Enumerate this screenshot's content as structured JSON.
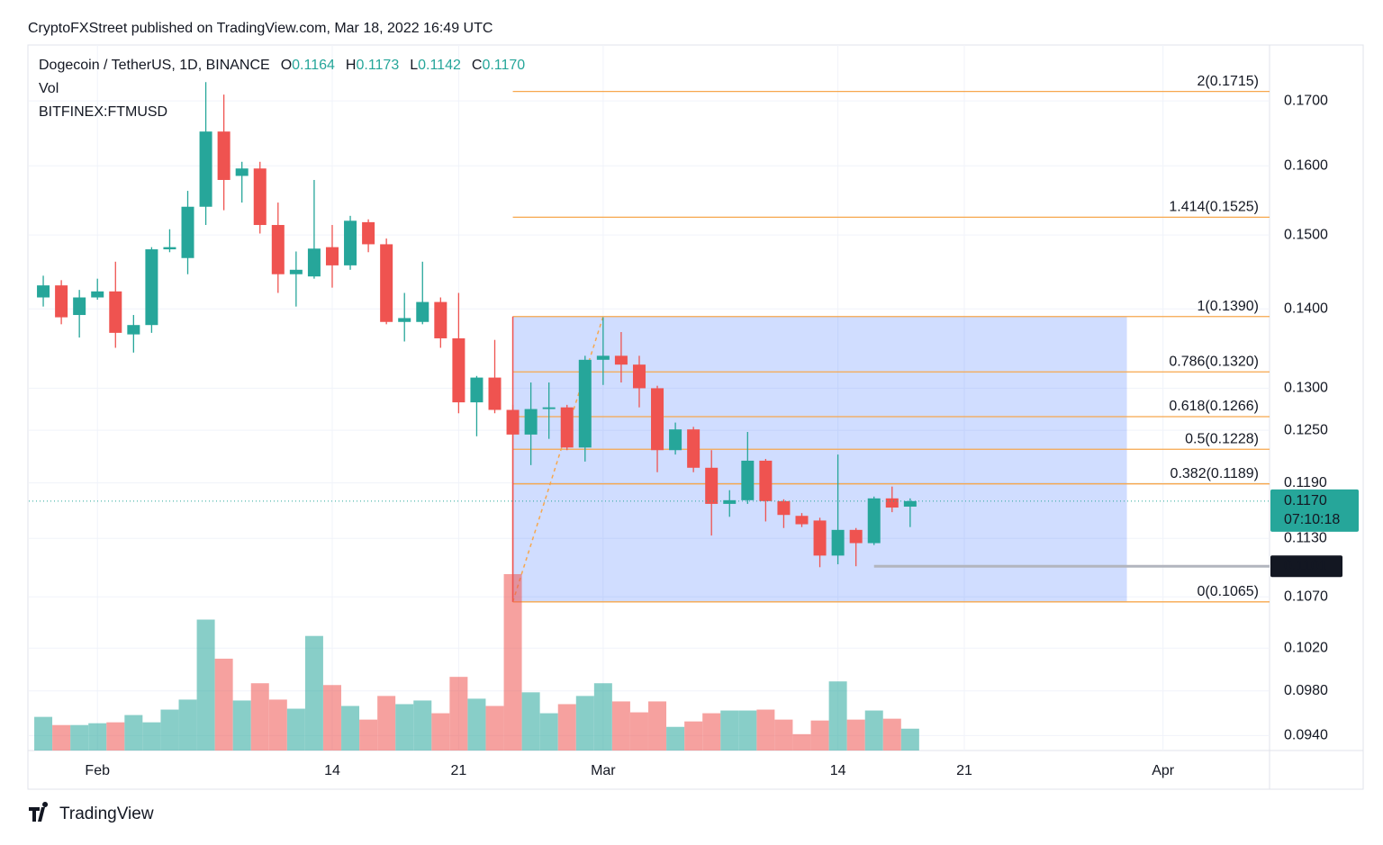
{
  "header": "CryptoFXStreet published on TradingView.com, Mar 18, 2022 16:49 UTC",
  "footer": "TradingView",
  "chart_data": {
    "type": "candlestick",
    "symbol": "Dogecoin / TetherUS, 1D, BINANCE",
    "legend_values": [
      {
        "key": "O",
        "value": "0.1164"
      },
      {
        "key": "H",
        "value": "0.1173"
      },
      {
        "key": "L",
        "value": "0.1142"
      },
      {
        "key": "C",
        "value": "0.1170"
      }
    ],
    "indicators": [
      "Vol",
      "BITFINEX:FTMUSD"
    ],
    "x": [
      0,
      1,
      2,
      3,
      4,
      5,
      6,
      7,
      8,
      9,
      10,
      11,
      12,
      13,
      14,
      15,
      16,
      17,
      18,
      19,
      20,
      21,
      22,
      23,
      24,
      25,
      26,
      27,
      28,
      29,
      30,
      31,
      32,
      33,
      34,
      35,
      36,
      37,
      38,
      39,
      40,
      41,
      42,
      43,
      44,
      45,
      46,
      47,
      48
    ],
    "open": [
      0.1415,
      0.1431,
      0.1392,
      0.1415,
      0.1423,
      0.1367,
      0.1379,
      0.148,
      0.1468,
      0.154,
      0.1652,
      0.1585,
      0.1596,
      0.1514,
      0.1446,
      0.1443,
      0.1483,
      0.1458,
      0.1518,
      0.1487,
      0.1383,
      0.1383,
      0.1409,
      0.1362,
      0.1283,
      0.1313,
      0.1274,
      0.1245,
      0.1275,
      0.1277,
      0.123,
      0.1335,
      0.134,
      0.1329,
      0.13,
      0.1227,
      0.1251,
      0.1207,
      0.1167,
      0.1171,
      0.1215,
      0.117,
      0.1154,
      0.1149,
      0.1112,
      0.1139,
      0.1125,
      0.1173,
      0.1164
    ],
    "high": [
      0.1444,
      0.1438,
      0.1425,
      0.144,
      0.1463,
      0.1392,
      0.1483,
      0.1508,
      0.1563,
      0.173,
      0.171,
      0.1606,
      0.1606,
      0.1546,
      0.1477,
      0.1579,
      0.1514,
      0.1527,
      0.1522,
      0.1495,
      0.1421,
      0.1463,
      0.1415,
      0.1421,
      0.1315,
      0.136,
      0.128,
      0.1307,
      0.1307,
      0.128,
      0.134,
      0.1389,
      0.137,
      0.134,
      0.1303,
      0.1259,
      0.1254,
      0.1227,
      0.1182,
      0.1248,
      0.1217,
      0.1172,
      0.1157,
      0.1152,
      0.1222,
      0.1141,
      0.1175,
      0.1186,
      0.1173
    ],
    "low": [
      0.1403,
      0.138,
      0.1363,
      0.1412,
      0.135,
      0.1344,
      0.1369,
      0.1476,
      0.1446,
      0.1514,
      0.1535,
      0.1546,
      0.1502,
      0.1421,
      0.1403,
      0.144,
      0.1428,
      0.1452,
      0.1476,
      0.138,
      0.1358,
      0.138,
      0.135,
      0.127,
      0.1243,
      0.127,
      0.1065,
      0.121,
      0.124,
      0.1227,
      0.1214,
      0.1304,
      0.1307,
      0.1277,
      0.1202,
      0.1222,
      0.1202,
      0.1133,
      0.1153,
      0.1167,
      0.1148,
      0.1141,
      0.1142,
      0.11,
      0.1103,
      0.1101,
      0.1123,
      0.1158,
      0.1142
    ],
    "close": [
      0.1431,
      0.1389,
      0.1415,
      0.1423,
      0.1369,
      0.1379,
      0.148,
      0.1483,
      0.154,
      0.1652,
      0.1579,
      0.1596,
      0.1514,
      0.1446,
      0.1452,
      0.1481,
      0.1458,
      0.152,
      0.1487,
      0.1383,
      0.1388,
      0.1409,
      0.1362,
      0.1283,
      0.1313,
      0.1274,
      0.1245,
      0.1275,
      0.1277,
      0.123,
      0.1335,
      0.134,
      0.1329,
      0.13,
      0.1227,
      0.1251,
      0.1207,
      0.1167,
      0.1171,
      0.1215,
      0.117,
      0.1155,
      0.1145,
      0.1112,
      0.1139,
      0.1125,
      0.1173,
      0.1163,
      0.117
    ],
    "volume": [
      37,
      28,
      28,
      30,
      31,
      39,
      31,
      45,
      56,
      144,
      101,
      55,
      74,
      56,
      46,
      126,
      72,
      49,
      34,
      60,
      51,
      55,
      41,
      81,
      57,
      49,
      194,
      64,
      41,
      51,
      60,
      74,
      54,
      42,
      54,
      26,
      32,
      41,
      44,
      44,
      45,
      34,
      18,
      33,
      76,
      34,
      44,
      35,
      24
    ],
    "up_color": "#26a69a",
    "down_color": "#ef5350",
    "log_scale": true,
    "grid": true,
    "xlim": [
      -0.8,
      67.9
    ],
    "xticks": [
      {
        "value": 3,
        "label": "Feb"
      },
      {
        "value": 16,
        "label": "14"
      },
      {
        "value": 23,
        "label": "21"
      },
      {
        "value": 31,
        "label": "Mar"
      },
      {
        "value": 44,
        "label": "14"
      },
      {
        "value": 51,
        "label": "21"
      },
      {
        "value": 62,
        "label": "Apr"
      }
    ],
    "ylim": [
      0.0927,
      0.1791
    ],
    "yticks": [
      {
        "value": 0.17,
        "label": "0.1700"
      },
      {
        "value": 0.16,
        "label": "0.1600"
      },
      {
        "value": 0.15,
        "label": "0.1500"
      },
      {
        "value": 0.14,
        "label": "0.1400"
      },
      {
        "value": 0.13,
        "label": "0.1300"
      },
      {
        "value": 0.125,
        "label": "0.1250"
      },
      {
        "value": 0.119,
        "label": "0.1190"
      },
      {
        "value": 0.113,
        "label": "0.1130"
      },
      {
        "value": 0.107,
        "label": "0.1070"
      },
      {
        "value": 0.102,
        "label": "0.1020"
      },
      {
        "value": 0.098,
        "label": "0.0980"
      },
      {
        "value": 0.094,
        "label": "0.0940"
      }
    ],
    "last_price": {
      "value": 0.117,
      "label": "0.1170",
      "countdown": "07:10:18"
    },
    "low_line": {
      "value": 0.1101,
      "label": "0.1101",
      "from": 46
    },
    "fib": {
      "from": 26,
      "to": 60,
      "color": "#f7a74d",
      "levels": [
        {
          "value": 0.1715,
          "label": "2(0.1715)"
        },
        {
          "value": 0.1525,
          "label": "1.414(0.1525)"
        },
        {
          "value": 0.139,
          "label": "1(0.1390)"
        },
        {
          "value": 0.132,
          "label": "0.786(0.1320)"
        },
        {
          "value": 0.1266,
          "label": "0.618(0.1266)"
        },
        {
          "value": 0.1228,
          "label": "0.5(0.1228)"
        },
        {
          "value": 0.1189,
          "label": "0.382(0.1189)"
        },
        {
          "value": 0.1065,
          "label": "0(0.1065)"
        }
      ]
    },
    "trend_line": {
      "x": [
        26,
        31
      ],
      "y": [
        0.1065,
        0.139
      ]
    }
  }
}
